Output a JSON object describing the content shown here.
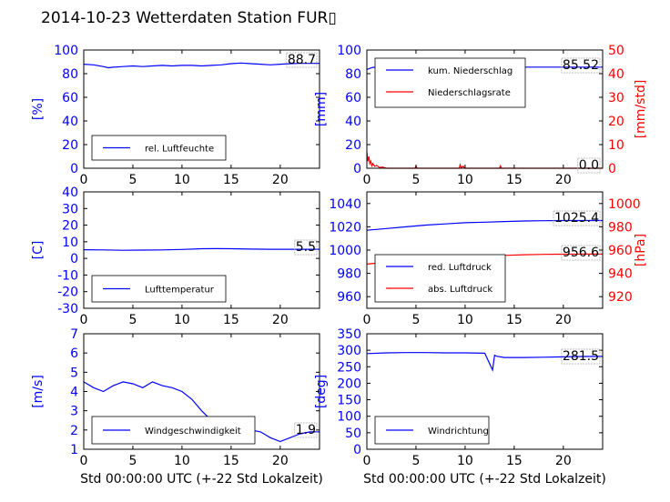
{
  "title": "2014-10-23 Wetterdaten Station FUR▯",
  "colors": {
    "left_axis": "#0000ff",
    "right_axis": "#ff0000",
    "series_blue": "#0000ff",
    "series_red": "#ff0000"
  },
  "chart_data": [
    {
      "type": "line",
      "xlim": [
        0,
        24
      ],
      "ylim": [
        0,
        100
      ],
      "xticks": [
        0,
        5,
        10,
        15,
        20
      ],
      "yticks": [
        0,
        20,
        40,
        60,
        80,
        100
      ],
      "ylabel": "[%]",
      "xlabel": "",
      "legend": "bottom-left",
      "series": [
        {
          "name": "rel. Luftfeuchte",
          "axis": "left",
          "color": "#0000ff",
          "x": [
            0,
            1,
            2,
            2.5,
            3,
            4,
            5,
            6,
            7,
            8,
            9,
            10,
            11,
            12,
            13,
            14,
            15,
            16,
            17,
            18,
            19,
            20,
            21,
            22,
            23,
            24
          ],
          "y": [
            88,
            87.5,
            86,
            85,
            85.5,
            86,
            86.5,
            86,
            86.5,
            87,
            86.5,
            87,
            87,
            86.5,
            87,
            87.5,
            88.5,
            89,
            88.5,
            88,
            87.5,
            88,
            88.5,
            88.7,
            88.7,
            88.7
          ]
        }
      ],
      "last_value": "88.7"
    },
    {
      "type": "line",
      "xlim": [
        0,
        24
      ],
      "ylim": [
        0,
        100
      ],
      "ylim_right": [
        0,
        50
      ],
      "xticks": [
        0,
        5,
        10,
        15,
        20
      ],
      "yticks": [
        0,
        20,
        40,
        60,
        80,
        100
      ],
      "yticks_right": [
        0,
        10,
        20,
        30,
        40,
        50
      ],
      "ylabel": "[mm]",
      "ylabel_right": "[mm/std]",
      "legend": "top-left",
      "series": [
        {
          "name": "kum. Niederschlag",
          "axis": "left",
          "color": "#0000ff",
          "x": [
            0,
            0.3,
            0.6,
            1,
            2,
            4,
            6,
            8,
            10,
            12,
            14,
            16,
            18,
            20,
            22,
            24
          ],
          "y": [
            83.5,
            84.5,
            85.3,
            85.5,
            85.52,
            85.52,
            85.52,
            85.52,
            85.52,
            85.52,
            85.52,
            85.52,
            85.52,
            85.52,
            85.52,
            85.52
          ]
        },
        {
          "name": "Niederschlagsrate",
          "axis": "right",
          "color": "#ff0000",
          "x": [
            0,
            0.1,
            0.2,
            0.3,
            0.4,
            0.5,
            0.6,
            0.8,
            1.0,
            1.3,
            1.6,
            2,
            3,
            4.9,
            5,
            5.1,
            6,
            9.4,
            9.5,
            9.6,
            9.8,
            10,
            13.5,
            13.6,
            13.7,
            15,
            20,
            24
          ],
          "y": [
            7,
            3,
            5,
            2,
            3,
            1,
            2,
            0.8,
            1.2,
            0.3,
            0.5,
            0,
            0,
            0,
            1,
            0,
            0,
            0,
            1.5,
            0.3,
            0.8,
            0,
            0,
            1,
            0,
            0,
            0,
            0
          ]
        }
      ],
      "last_value": "85.52",
      "last_value_right": "0.0"
    },
    {
      "type": "line",
      "xlim": [
        0,
        24
      ],
      "ylim": [
        -30,
        40
      ],
      "xticks": [
        0,
        5,
        10,
        15,
        20
      ],
      "yticks": [
        -30,
        -20,
        -10,
        0,
        10,
        20,
        30,
        40
      ],
      "ylabel": "[C]",
      "legend": "bottom-left",
      "series": [
        {
          "name": "Lufttemperatur",
          "axis": "left",
          "color": "#0000ff",
          "x": [
            0,
            2,
            4,
            6,
            8,
            10,
            12,
            13.5,
            15,
            17,
            19,
            21,
            22,
            24
          ],
          "y": [
            5.2,
            5.1,
            4.9,
            5.0,
            5.1,
            5.4,
            5.8,
            5.9,
            5.8,
            5.6,
            5.5,
            5.5,
            5.5,
            5.5
          ]
        }
      ],
      "last_value": "5.5"
    },
    {
      "type": "line",
      "xlim": [
        0,
        24
      ],
      "ylim": [
        950,
        1050
      ],
      "ylim_right": [
        910,
        1010
      ],
      "xticks": [
        0,
        5,
        10,
        15,
        20
      ],
      "yticks": [
        960,
        980,
        1000,
        1020,
        1040
      ],
      "yticks_right": [
        920,
        940,
        960,
        980,
        1000
      ],
      "ylabel_right": "[hPa]",
      "legend": "bottom-left",
      "series": [
        {
          "name": "red. Luftdruck",
          "axis": "left",
          "color": "#0000ff",
          "x": [
            0,
            2,
            4,
            6,
            8,
            10,
            12,
            14,
            16,
            18,
            20,
            22,
            24
          ],
          "y": [
            1017,
            1018.5,
            1020,
            1021.5,
            1022.5,
            1023.5,
            1024,
            1024.5,
            1025,
            1025.2,
            1025.4,
            1025.4,
            1025.4
          ]
        },
        {
          "name": "abs. Luftdruck",
          "axis": "right",
          "color": "#ff0000",
          "x": [
            0,
            2,
            4,
            6,
            8,
            10,
            12,
            14,
            16,
            18,
            20,
            22,
            24
          ],
          "y": [
            948,
            949.5,
            951,
            952.5,
            953.5,
            954.5,
            955,
            955.5,
            956,
            956.3,
            956.5,
            956.6,
            956.6
          ]
        }
      ],
      "last_value": "1025.4",
      "last_value_right": "956.6"
    },
    {
      "type": "line",
      "xlim": [
        0,
        24
      ],
      "ylim": [
        1,
        7
      ],
      "xticks": [
        0,
        5,
        10,
        15,
        20
      ],
      "yticks": [
        1,
        2,
        3,
        4,
        5,
        6,
        7
      ],
      "ylabel": "[m/s]",
      "xlabel": "Std 00:00:00 UTC (+-22 Std Lokalzeit)",
      "legend": "bottom-left",
      "series": [
        {
          "name": "Windgeschwindigkeit",
          "axis": "left",
          "color": "#0000ff",
          "x": [
            0,
            1,
            2,
            3,
            4,
            5,
            6,
            7,
            8,
            9,
            10,
            11,
            12,
            13,
            14,
            15,
            16,
            17,
            18,
            19,
            20,
            21,
            22,
            23,
            24
          ],
          "y": [
            4.5,
            4.2,
            4.0,
            4.3,
            4.5,
            4.4,
            4.2,
            4.5,
            4.3,
            4.2,
            4.0,
            3.6,
            3.0,
            2.5,
            2.4,
            2.2,
            2.0,
            2.0,
            1.9,
            1.6,
            1.4,
            1.6,
            1.8,
            1.9,
            1.9
          ]
        }
      ],
      "last_value": "1.9"
    },
    {
      "type": "line",
      "xlim": [
        0,
        24
      ],
      "ylim": [
        0,
        350
      ],
      "xticks": [
        0,
        5,
        10,
        15,
        20
      ],
      "yticks": [
        0,
        50,
        100,
        150,
        200,
        250,
        300,
        350
      ],
      "ylabel": "[deg]",
      "xlabel": "Std 00:00:00 UTC (+-22 Std Lokalzeit)",
      "legend": "bottom-left",
      "series": [
        {
          "name": "Windrichtung",
          "axis": "left",
          "color": "#0000ff",
          "x": [
            0,
            2,
            4,
            6,
            8,
            10,
            12,
            12.8,
            13,
            13.2,
            14,
            16,
            18,
            20,
            22,
            24
          ],
          "y": [
            290,
            292,
            293,
            293,
            292,
            292,
            291,
            240,
            285,
            282,
            278,
            278,
            279,
            280,
            281,
            281.5
          ]
        }
      ],
      "last_value": "281.5"
    }
  ]
}
